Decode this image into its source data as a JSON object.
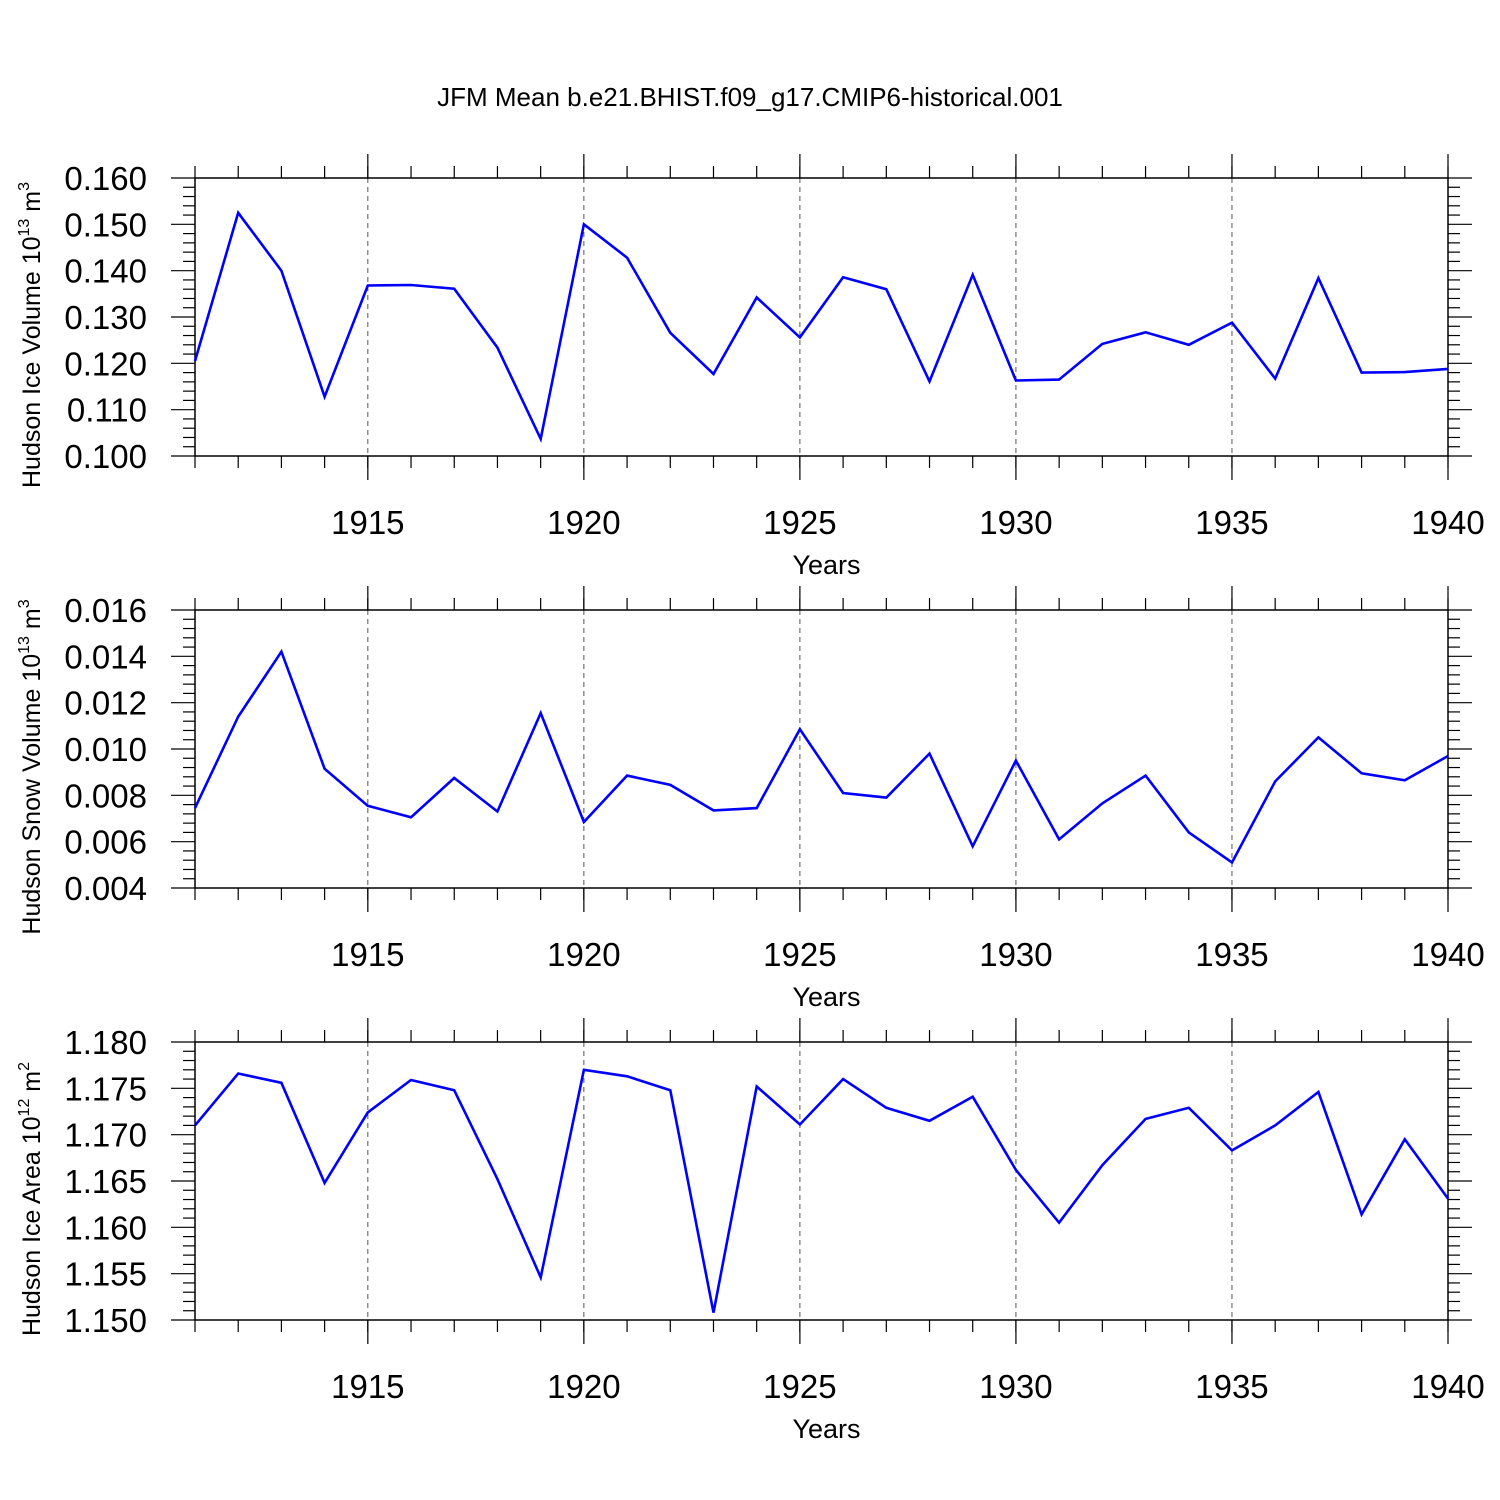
{
  "title": "JFM Mean b.e21.BHIST.f09_g17.CMIP6-historical.001",
  "colors": {
    "line": "#0000ff",
    "axis": "#000000",
    "grid": "#555555"
  },
  "chart_data": [
    {
      "type": "line",
      "xlabel": "Years",
      "ylabel": {
        "text": "Hudson Ice Volume 10",
        "exp": "13",
        "unit": " m",
        "unit_exp": "3"
      },
      "xlim": [
        1911,
        1940
      ],
      "ylim": [
        0.1,
        0.16
      ],
      "xticks": [
        "1915",
        "1920",
        "1925",
        "1930",
        "1935",
        "1940"
      ],
      "yticks": [
        "0.100",
        "0.110",
        "0.120",
        "0.130",
        "0.140",
        "0.150",
        "0.160"
      ],
      "x": [
        1911,
        1912,
        1913,
        1914,
        1915,
        1916,
        1917,
        1918,
        1919,
        1920,
        1921,
        1922,
        1923,
        1924,
        1925,
        1926,
        1927,
        1928,
        1929,
        1930,
        1931,
        1932,
        1933,
        1934,
        1935,
        1936,
        1937,
        1938,
        1939,
        1940
      ],
      "y": [
        0.1205,
        0.1525,
        0.14,
        0.1128,
        0.1368,
        0.1369,
        0.1361,
        0.1234,
        0.1037,
        0.15,
        0.1428,
        0.1266,
        0.1177,
        0.1342,
        0.1256,
        0.1386,
        0.136,
        0.1161,
        0.1391,
        0.1163,
        0.1165,
        0.1242,
        0.1267,
        0.124,
        0.1288,
        0.1167,
        0.1384,
        0.118,
        0.1181,
        0.1188
      ]
    },
    {
      "type": "line",
      "xlabel": "Years",
      "ylabel": {
        "text": "Hudson Snow Volume 10",
        "exp": "13",
        "unit": " m",
        "unit_exp": "3"
      },
      "xlim": [
        1911,
        1940
      ],
      "ylim": [
        0.004,
        0.016
      ],
      "xticks": [
        "1915",
        "1920",
        "1925",
        "1930",
        "1935",
        "1940"
      ],
      "yticks": [
        "0.004",
        "0.006",
        "0.008",
        "0.010",
        "0.012",
        "0.014",
        "0.016"
      ],
      "x": [
        1911,
        1912,
        1913,
        1914,
        1915,
        1916,
        1917,
        1918,
        1919,
        1920,
        1921,
        1922,
        1923,
        1924,
        1925,
        1926,
        1927,
        1928,
        1929,
        1930,
        1931,
        1932,
        1933,
        1934,
        1935,
        1936,
        1937,
        1938,
        1939,
        1940
      ],
      "y": [
        0.00745,
        0.0114,
        0.0142,
        0.00915,
        0.00755,
        0.00705,
        0.00875,
        0.0073,
        0.01155,
        0.00685,
        0.00885,
        0.00845,
        0.00735,
        0.00745,
        0.01085,
        0.0081,
        0.0079,
        0.0098,
        0.0058,
        0.0095,
        0.0061,
        0.00765,
        0.00885,
        0.0064,
        0.0051,
        0.0086,
        0.0105,
        0.00895,
        0.00865,
        0.0097
      ]
    },
    {
      "type": "line",
      "xlabel": "Years",
      "ylabel": {
        "text": "Hudson Ice Area 10",
        "exp": "12",
        "unit": " m",
        "unit_exp": "2"
      },
      "xlim": [
        1911,
        1940
      ],
      "ylim": [
        1.15,
        1.18
      ],
      "xticks": [
        "1915",
        "1920",
        "1925",
        "1930",
        "1935",
        "1940"
      ],
      "yticks": [
        "1.150",
        "1.155",
        "1.160",
        "1.165",
        "1.170",
        "1.175",
        "1.180"
      ],
      "x": [
        1911,
        1912,
        1913,
        1914,
        1915,
        1916,
        1917,
        1918,
        1919,
        1920,
        1921,
        1922,
        1923,
        1924,
        1925,
        1926,
        1927,
        1928,
        1929,
        1930,
        1931,
        1932,
        1933,
        1934,
        1935,
        1936,
        1937,
        1938,
        1939,
        1940
      ],
      "y": [
        1.171,
        1.1766,
        1.1756,
        1.1648,
        1.1724,
        1.1759,
        1.1748,
        1.1652,
        1.1546,
        1.177,
        1.1763,
        1.1748,
        1.1508,
        1.1752,
        1.1711,
        1.176,
        1.1729,
        1.1715,
        1.1741,
        1.1662,
        1.1605,
        1.1667,
        1.1717,
        1.1729,
        1.1683,
        1.171,
        1.1746,
        1.1614,
        1.1695,
        1.1631
      ]
    }
  ]
}
